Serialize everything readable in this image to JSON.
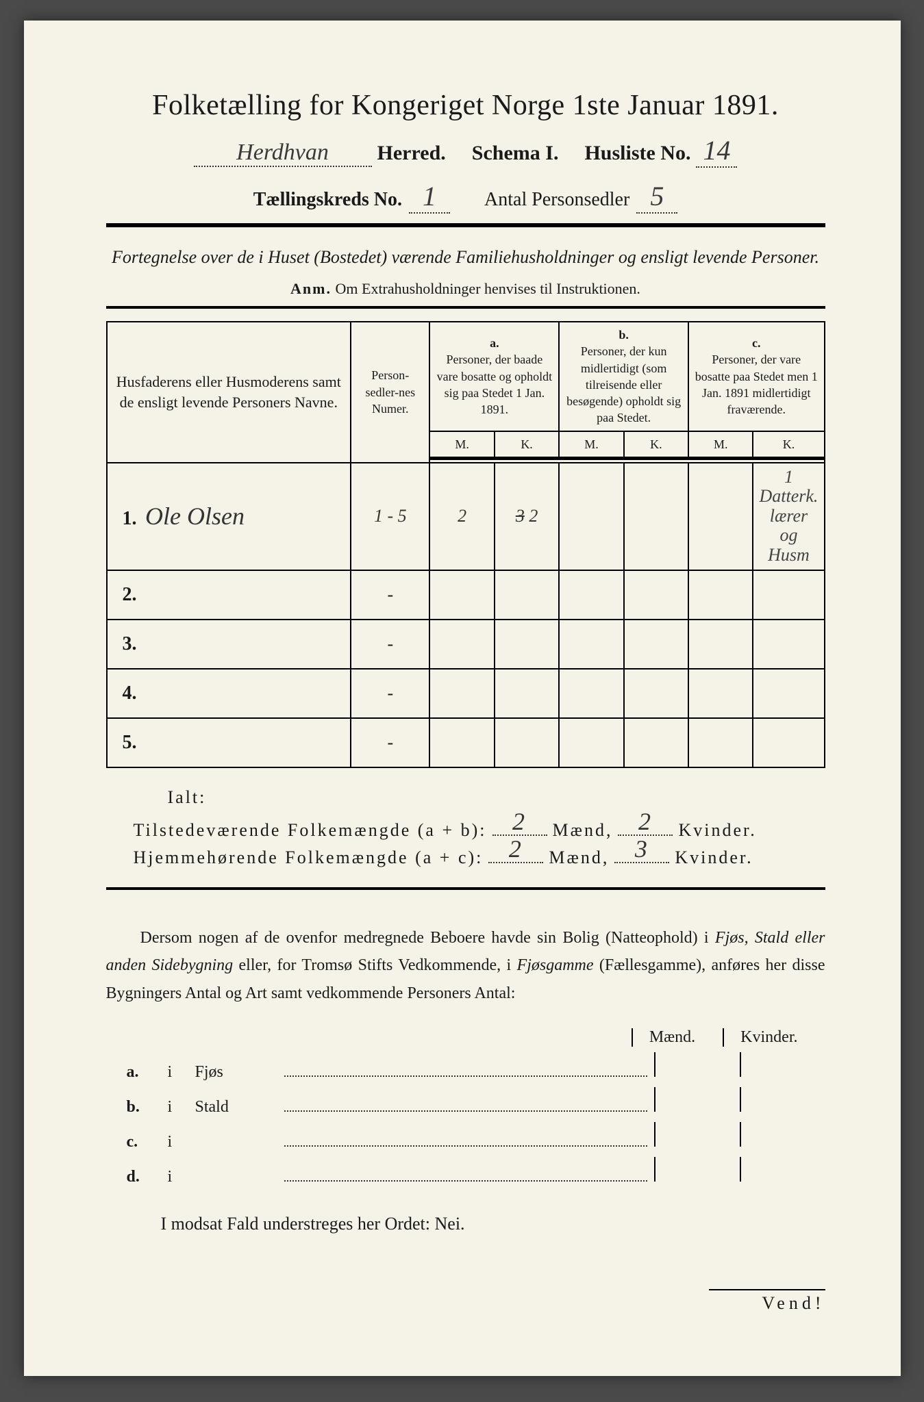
{
  "title": "Folketælling for Kongeriget Norge 1ste Januar 1891.",
  "header": {
    "herred_hw": "Herdhvan",
    "herred_label": "Herred.",
    "schema_label": "Schema I.",
    "husliste_label": "Husliste No.",
    "husliste_hw": "14",
    "kreds_label": "Tællingskreds No.",
    "kreds_hw": "1",
    "antal_label": "Antal Personsedler",
    "antal_hw": "5"
  },
  "subtitle": "Fortegnelse over de i Huset (Bostedet) værende Familiehusholdninger og ensligt levende Personer.",
  "anm_lead": "Anm.",
  "anm_text": "Om Extrahusholdninger henvises til Instruktionen.",
  "table": {
    "col_name": "Husfaderens eller Husmoderens samt de ensligt levende Personers Navne.",
    "col_num": "Person-sedler-nes Numer.",
    "a_label": "a.",
    "a_text": "Personer, der baade vare bosatte og opholdt sig paa Stedet 1 Jan. 1891.",
    "b_label": "b.",
    "b_text": "Personer, der kun midlertidigt (som tilreisende eller besøgende) opholdt sig paa Stedet.",
    "c_label": "c.",
    "c_text": "Personer, der vare bosatte paa Stedet men 1 Jan. 1891 midlertidigt fraværende.",
    "M": "M.",
    "K": "K.",
    "rows": [
      {
        "n": "1.",
        "name": "Ole Olsen",
        "num": "1 - 5",
        "aM": "2",
        "aK": "3 2",
        "bM": "",
        "bK": "",
        "cM": "",
        "cK": "1 Datterk. lærer og Husm"
      },
      {
        "n": "2.",
        "name": "",
        "num": "-",
        "aM": "",
        "aK": "",
        "bM": "",
        "bK": "",
        "cM": "",
        "cK": ""
      },
      {
        "n": "3.",
        "name": "",
        "num": "-",
        "aM": "",
        "aK": "",
        "bM": "",
        "bK": "",
        "cM": "",
        "cK": ""
      },
      {
        "n": "4.",
        "name": "",
        "num": "-",
        "aM": "",
        "aK": "",
        "bM": "",
        "bK": "",
        "cM": "",
        "cK": ""
      },
      {
        "n": "5.",
        "name": "",
        "num": "-",
        "aM": "",
        "aK": "",
        "bM": "",
        "bK": "",
        "cM": "",
        "cK": ""
      }
    ]
  },
  "ialt": "Ialt:",
  "sums": {
    "tilstedev": "Tilstedeværende Folkemængde (a + b):",
    "hjemme": "Hjemmehørende Folkemængde (a + c):",
    "tilstedev_m": "2",
    "tilstedev_k": "2",
    "hjemme_m": "2",
    "hjemme_k": "3",
    "maend": "Mænd,",
    "kvinder": "Kvinder."
  },
  "para_text": "Dersom nogen af de ovenfor medregnede Beboere havde sin Bolig (Natteophold) i Fjøs, Stald eller anden Sidebygning eller, for Tromsø Stifts Vedkommende, i Fjøsgamme (Fællesgamme), anføres her disse Bygningers Antal og Art samt vedkommende Personers Antal:",
  "mk_header": {
    "m": "Mænd.",
    "k": "Kvinder."
  },
  "abcd": [
    {
      "l": "a.",
      "t": "i",
      "w": "Fjøs"
    },
    {
      "l": "b.",
      "t": "i",
      "w": "Stald"
    },
    {
      "l": "c.",
      "t": "i",
      "w": ""
    },
    {
      "l": "d.",
      "t": "i",
      "w": ""
    }
  ],
  "nei": "I modsat Fald understreges her Ordet: Nei.",
  "vend": "Vend!",
  "colors": {
    "paper": "#f5f2e8",
    "ink": "#1a1a1a",
    "pencil": "#3a3a3a"
  }
}
